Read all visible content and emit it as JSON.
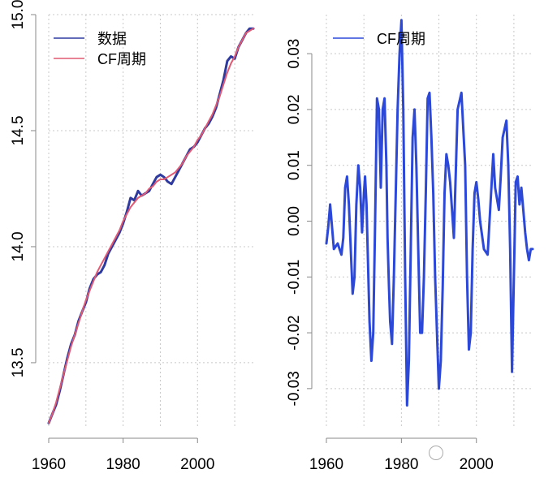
{
  "chart_data": [
    {
      "type": "line",
      "title": "",
      "xlabel": "",
      "ylabel": "",
      "xlim": [
        1960,
        2015
      ],
      "ylim": [
        13.22,
        15.0
      ],
      "xticks": [
        1960,
        1980,
        2000
      ],
      "yticks": [
        13.5,
        14.0,
        14.5,
        15.0
      ],
      "ytick_labels": [
        "13.5",
        "14.0",
        "14.5",
        "15.0"
      ],
      "xtick_labels": [
        "1960",
        "1980",
        "2000"
      ],
      "grid": true,
      "legend": "top-left",
      "series": [
        {
          "name": "数据",
          "color": "#2e3a9f",
          "x": [
            1960,
            1961,
            1962,
            1963,
            1964,
            1965,
            1966,
            1967,
            1968,
            1969,
            1970,
            1971,
            1972,
            1973,
            1974,
            1975,
            1976,
            1977,
            1978,
            1979,
            1980,
            1981,
            1982,
            1983,
            1984,
            1985,
            1986,
            1987,
            1988,
            1989,
            1990,
            1991,
            1992,
            1993,
            1994,
            1995,
            1996,
            1997,
            1998,
            1999,
            2000,
            2001,
            2002,
            2003,
            2004,
            2005,
            2006,
            2007,
            2008,
            2009,
            2010,
            2011,
            2012,
            2013,
            2014,
            2015
          ],
          "y": [
            13.24,
            13.28,
            13.32,
            13.38,
            13.45,
            13.52,
            13.58,
            13.62,
            13.68,
            13.72,
            13.76,
            13.82,
            13.86,
            13.88,
            13.89,
            13.92,
            13.97,
            14.0,
            14.03,
            14.06,
            14.1,
            14.15,
            14.21,
            14.2,
            14.24,
            14.22,
            14.23,
            14.24,
            14.27,
            14.3,
            14.31,
            14.3,
            14.28,
            14.27,
            14.3,
            14.33,
            14.36,
            14.39,
            14.42,
            14.43,
            14.45,
            14.48,
            14.51,
            14.53,
            14.56,
            14.6,
            14.66,
            14.72,
            14.8,
            14.82,
            14.81,
            14.86,
            14.89,
            14.92,
            14.94,
            14.94
          ]
        },
        {
          "name": "CF周期",
          "color": "#e05a73",
          "x": [
            1960,
            1961,
            1962,
            1963,
            1964,
            1965,
            1966,
            1967,
            1968,
            1969,
            1970,
            1971,
            1972,
            1973,
            1974,
            1975,
            1976,
            1977,
            1978,
            1979,
            1980,
            1981,
            1982,
            1983,
            1984,
            1985,
            1986,
            1987,
            1988,
            1989,
            1990,
            1991,
            1992,
            1993,
            1994,
            1995,
            1996,
            1997,
            1998,
            1999,
            2000,
            2001,
            2002,
            2003,
            2004,
            2005,
            2006,
            2007,
            2008,
            2009,
            2010,
            2011,
            2012,
            2013,
            2014,
            2015
          ],
          "y": [
            13.24,
            13.28,
            13.33,
            13.39,
            13.45,
            13.51,
            13.57,
            13.62,
            13.67,
            13.72,
            13.77,
            13.81,
            13.85,
            13.89,
            13.92,
            13.95,
            13.98,
            14.01,
            14.04,
            14.07,
            14.11,
            14.14,
            14.17,
            14.19,
            14.21,
            14.22,
            14.23,
            14.25,
            14.26,
            14.28,
            14.29,
            14.29,
            14.3,
            14.31,
            14.32,
            14.34,
            14.36,
            14.39,
            14.41,
            14.43,
            14.46,
            14.48,
            14.51,
            14.54,
            14.57,
            14.61,
            14.65,
            14.7,
            14.75,
            14.79,
            14.82,
            14.86,
            14.89,
            14.92,
            14.93,
            14.94
          ]
        }
      ]
    },
    {
      "type": "line",
      "title": "",
      "xlabel": "",
      "ylabel": "",
      "xlim": [
        1960,
        2015
      ],
      "ylim": [
        -0.037,
        0.037
      ],
      "xticks": [
        1960,
        1980,
        2000
      ],
      "yticks": [
        -0.03,
        -0.02,
        -0.01,
        0.0,
        0.01,
        0.02,
        0.03
      ],
      "ytick_labels": [
        "-0.03",
        "-0.02",
        "-0.01",
        "0.00",
        "0.01",
        "0.02",
        "0.03"
      ],
      "xtick_labels": [
        "1960",
        "1980",
        "2000"
      ],
      "grid": true,
      "legend": "top-left",
      "series": [
        {
          "name": "CF周期",
          "color": "#2c48d8",
          "x": [
            1960,
            1960.5,
            1961,
            1962,
            1963,
            1964,
            1964.5,
            1965,
            1965.5,
            1966,
            1967,
            1967.5,
            1968,
            1968.5,
            1969,
            1969.5,
            1970,
            1970.3,
            1970.7,
            1971,
            1971.5,
            1972,
            1972.5,
            1973,
            1973.5,
            1974,
            1974.5,
            1975,
            1975.5,
            1976,
            1976.3,
            1976.7,
            1977,
            1977.5,
            1978,
            1978.5,
            1979,
            1979.5,
            1980,
            1980.5,
            1981,
            1981.5,
            1982,
            1982.5,
            1983,
            1983.5,
            1984,
            1984.5,
            1985,
            1985.5,
            1986,
            1986.5,
            1987,
            1987.5,
            1988,
            1988.5,
            1989,
            1989.5,
            1990,
            1990.5,
            1991,
            1991.5,
            1992,
            1992.5,
            1993,
            1994,
            1995,
            1996,
            1997,
            1997.5,
            1998,
            1998.5,
            1999,
            1999.5,
            2000,
            2000.5,
            2001,
            2002,
            2003,
            2004,
            2004.5,
            2005,
            2006,
            2006.5,
            2007,
            2008,
            2008.5,
            2009,
            2009.5,
            2010,
            2010.5,
            2011,
            2011.5,
            2012,
            2012.5,
            2013,
            2013.5,
            2014,
            2014.5,
            2015
          ],
          "y": [
            -0.004,
            -0.001,
            0.003,
            -0.005,
            -0.004,
            -0.006,
            -0.003,
            0.006,
            0.008,
            0.003,
            -0.013,
            -0.01,
            0.003,
            0.01,
            0.006,
            -0.002,
            0.005,
            0.008,
            0.003,
            -0.005,
            -0.018,
            -0.025,
            -0.02,
            0.0,
            0.022,
            0.02,
            0.006,
            0.02,
            0.022,
            0.01,
            -0.003,
            -0.012,
            -0.018,
            -0.022,
            -0.01,
            0.005,
            0.02,
            0.03,
            0.036,
            0.02,
            -0.01,
            -0.033,
            -0.025,
            -0.005,
            0.015,
            0.02,
            0.01,
            -0.005,
            -0.02,
            -0.02,
            -0.01,
            0.005,
            0.022,
            0.023,
            0.015,
            0.005,
            -0.01,
            -0.02,
            -0.03,
            -0.025,
            -0.012,
            0.005,
            0.012,
            0.01,
            0.007,
            -0.003,
            0.02,
            0.023,
            0.01,
            -0.01,
            -0.023,
            -0.02,
            -0.005,
            0.005,
            0.007,
            0.004,
            0.0,
            -0.005,
            -0.006,
            0.006,
            0.012,
            0.006,
            0.002,
            0.008,
            0.015,
            0.018,
            0.01,
            -0.005,
            -0.027,
            -0.01,
            0.007,
            0.008,
            0.003,
            0.006,
            0.002,
            -0.002,
            -0.005,
            -0.007,
            -0.005,
            -0.005
          ]
        }
      ]
    }
  ]
}
